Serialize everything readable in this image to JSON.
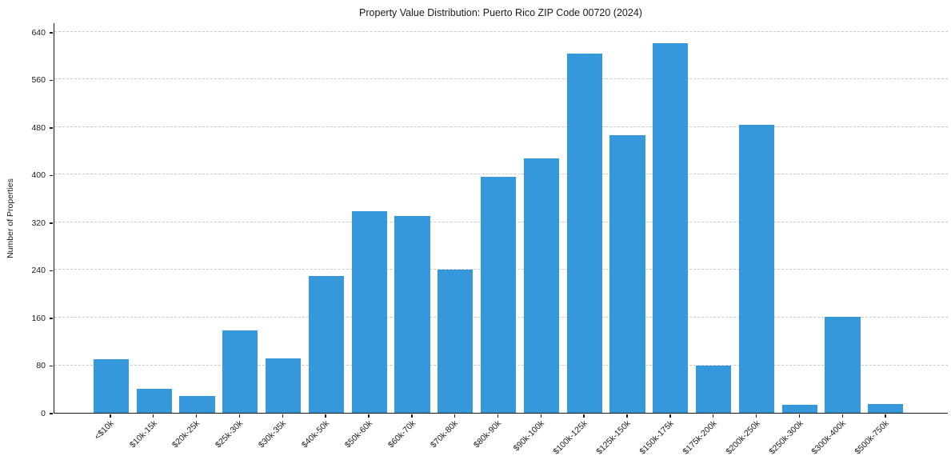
{
  "title": "Property Value Distribution: Puerto Rico ZIP Code 00720 (2024)",
  "chart_data": {
    "type": "bar",
    "title": "Property Value Distribution: Puerto Rico ZIP Code 00720 (2024)",
    "xlabel": "",
    "ylabel": "Number of Properties",
    "categories": [
      "<$10k",
      "$10k-15k",
      "$20k-25k",
      "$25k-30k",
      "$30k-35k",
      "$40k-50k",
      "$50k-60k",
      "$60k-70k",
      "$70k-80k",
      "$80k-90k",
      "$90k-100k",
      "$100k-125k",
      "$125k-150k",
      "$150k-175k",
      "$175k-200k",
      "$200k-250k",
      "$250k-300k",
      "$300k-400k",
      "$500k-750k"
    ],
    "values": [
      90,
      40,
      28,
      139,
      92,
      230,
      340,
      331,
      241,
      398,
      429,
      605,
      467,
      623,
      79,
      485,
      14,
      162,
      15
    ],
    "yticks": [
      0,
      80,
      160,
      240,
      320,
      400,
      480,
      560,
      640
    ],
    "ylim": [
      0,
      656
    ],
    "grid": "horizontal-dashed",
    "legend": "none",
    "colors": {
      "bar": "#3498db",
      "grid": "#c9c9c9",
      "axis": "#1a1a1a",
      "text": "#1a1a1a",
      "background": "#ffffff"
    }
  }
}
